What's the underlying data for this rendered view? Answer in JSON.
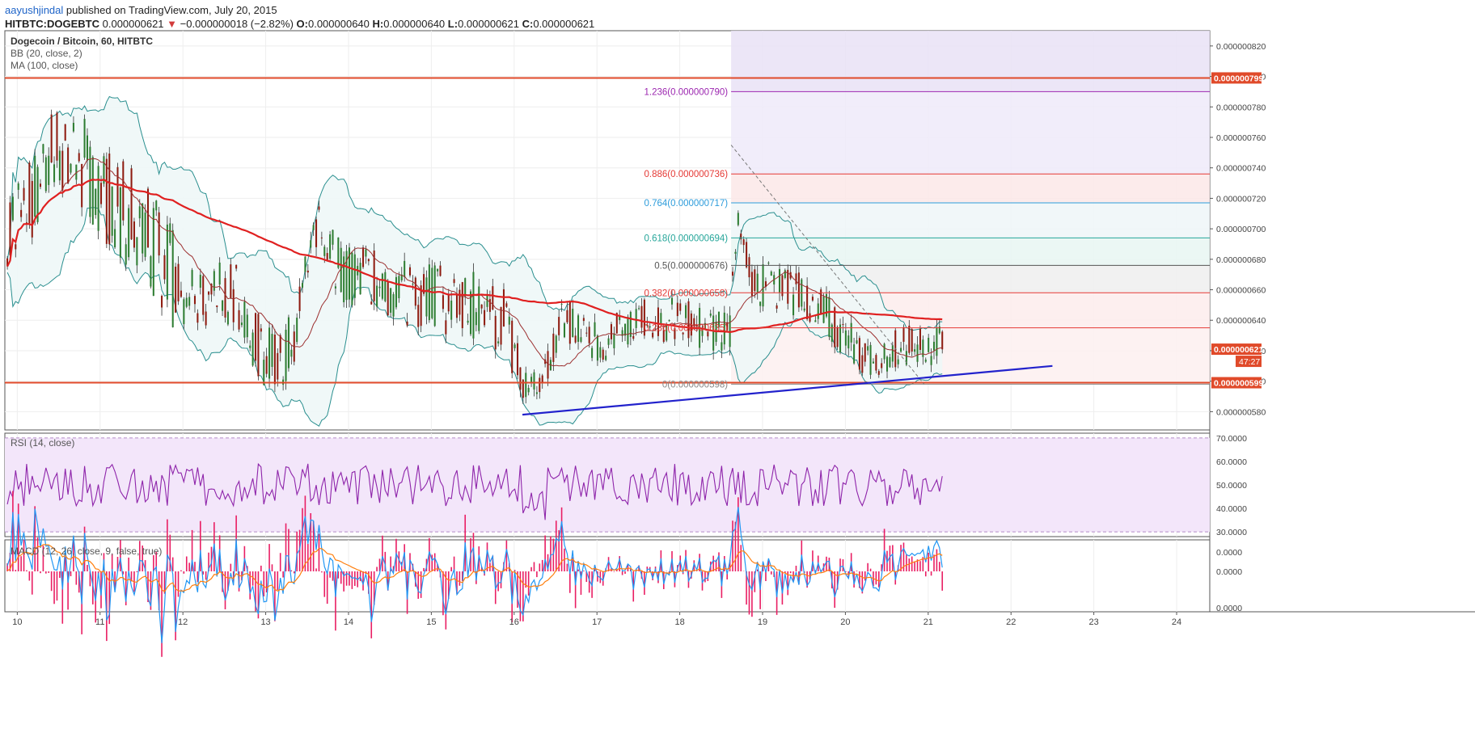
{
  "header": {
    "author": "aayushjindal",
    "published": "published on TradingView.com, July 20, 2015",
    "symbol": "HITBTC:DOGEBTC",
    "last": "0.000000621",
    "arrow": "▼",
    "change": "−0.000000018 (−2.82%)",
    "open_label": "O:",
    "open": "0.000000640",
    "high_label": "H:",
    "high": "0.000000640",
    "low_label": "L:",
    "low": "0.000000621",
    "close_label": "C:",
    "close": "0.000000621"
  },
  "chart_data": {
    "type": "candlestick",
    "title": "Dogecoin / Bitcoin, 60, HITBTC",
    "indicators": [
      "BB (20, close, 2)",
      "MA (100, close)"
    ],
    "x_ticks": [
      "10",
      "11",
      "12",
      "13",
      "14",
      "15",
      "16",
      "17",
      "18",
      "19",
      "20",
      "21",
      "22",
      "23",
      "24"
    ],
    "y_ticks": [
      "0.000000820",
      "0.000000800",
      "0.000000780",
      "0.000000760",
      "0.000000740",
      "0.000000720",
      "0.000000700",
      "0.000000680",
      "0.000000660",
      "0.000000640",
      "0.000000620",
      "0.000000600",
      "0.000000580"
    ],
    "ylim": [
      5.68e-07,
      8.3e-07
    ],
    "x_range_days": [
      9.85,
      24.4
    ],
    "price_labels": {
      "resistance": "0.000000799",
      "current": "0.000000621",
      "support": "0.000000599",
      "countdown": "47:27"
    },
    "horizontal_lines": [
      {
        "name": "resistance",
        "value": 7.99e-07,
        "color": "#e04a2a"
      },
      {
        "name": "support",
        "value": 5.99e-07,
        "color": "#e04a2a"
      }
    ],
    "trendline": {
      "from": [
        16.1,
        5.78e-07
      ],
      "to": [
        22.5,
        6.1e-07
      ],
      "color": "#2222cc"
    },
    "fibonacci": [
      {
        "label": "1.236(0.000000790)",
        "value": 7.9e-07,
        "color": "#9c27b0"
      },
      {
        "label": "0.886(0.000000736)",
        "value": 7.36e-07,
        "color": "#e53935"
      },
      {
        "label": "0.764(0.000000717)",
        "value": 7.17e-07,
        "color": "#2d9cdb"
      },
      {
        "label": "0.618(0.000000694)",
        "value": 6.94e-07,
        "color": "#26a69a"
      },
      {
        "label": "0.5(0.000000676)",
        "value": 6.76e-07,
        "color": "#555555"
      },
      {
        "label": "0.382(0.000000658)",
        "value": 6.58e-07,
        "color": "#e53935"
      },
      {
        "label": "0.236(0.000000635)",
        "value": 6.35e-07,
        "color": "#e53935"
      },
      {
        "label": "0(0.000000598)",
        "value": 5.98e-07,
        "color": "#888888"
      }
    ],
    "fib_range_days": [
      18.62,
      24.4
    ],
    "rsi": {
      "label": "RSI (14, close)",
      "y_ticks": [
        "70.0000",
        "60.0000",
        "50.0000",
        "40.0000",
        "30.0000"
      ],
      "ylim": [
        28,
        72
      ],
      "color": "#8e24aa"
    },
    "macd": {
      "label": "MACD (12, 26, close, 9, false, true)",
      "y_ticks": [
        "0.0000",
        "0.0000",
        "0.0000"
      ],
      "macd_color": "#2196f3",
      "signal_color": "#ff7f0e",
      "hist_color": "#e91e63"
    },
    "colors": {
      "up": "#2e7d32",
      "down": "#8e1b10",
      "bb": "#2a8f8f",
      "bb_fill": "#eef7f7",
      "ma": "#e02020",
      "basis": "#9c3030"
    }
  }
}
